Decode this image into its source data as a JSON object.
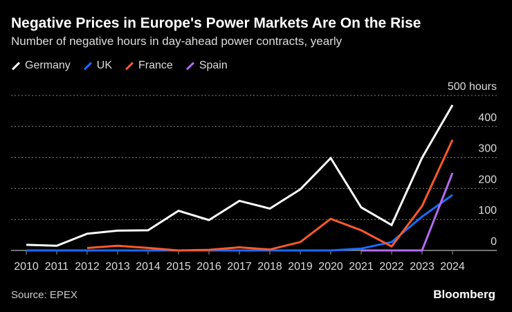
{
  "chart_data": {
    "type": "line",
    "title": "Negative Prices in Europe's Power Markets Are On the Rise",
    "subtitle": "Number of negative hours in day-ahead power contracts, yearly",
    "x": [
      2010,
      2011,
      2012,
      2013,
      2014,
      2015,
      2016,
      2017,
      2018,
      2019,
      2020,
      2021,
      2022,
      2023,
      2024
    ],
    "yunit": "500 hours",
    "ylim": [
      0,
      500
    ],
    "yticks": [
      0,
      100,
      200,
      300,
      400,
      500
    ],
    "grid": true,
    "legend_position": "top-left",
    "series": [
      {
        "name": "Germany",
        "color": "#ffffff",
        "values": [
          18,
          15,
          54,
          64,
          65,
          128,
          98,
          160,
          135,
          197,
          298,
          139,
          82,
          299,
          469
        ]
      },
      {
        "name": "UK",
        "color": "#1a6cff",
        "values": [
          0,
          0,
          0,
          0,
          0,
          0,
          0,
          0,
          0,
          0,
          0,
          6,
          27,
          109,
          179
        ]
      },
      {
        "name": "France",
        "color": "#ff5a2a",
        "values": [
          null,
          null,
          8,
          15,
          8,
          0,
          2,
          10,
          3,
          27,
          102,
          65,
          13,
          143,
          357
        ]
      },
      {
        "name": "Spain",
        "color": "#b46cf0",
        "values": [
          null,
          null,
          null,
          null,
          null,
          null,
          null,
          null,
          null,
          null,
          null,
          0,
          0,
          0,
          250
        ]
      }
    ]
  },
  "source": "Source: EPEX",
  "brand": "Bloomberg"
}
